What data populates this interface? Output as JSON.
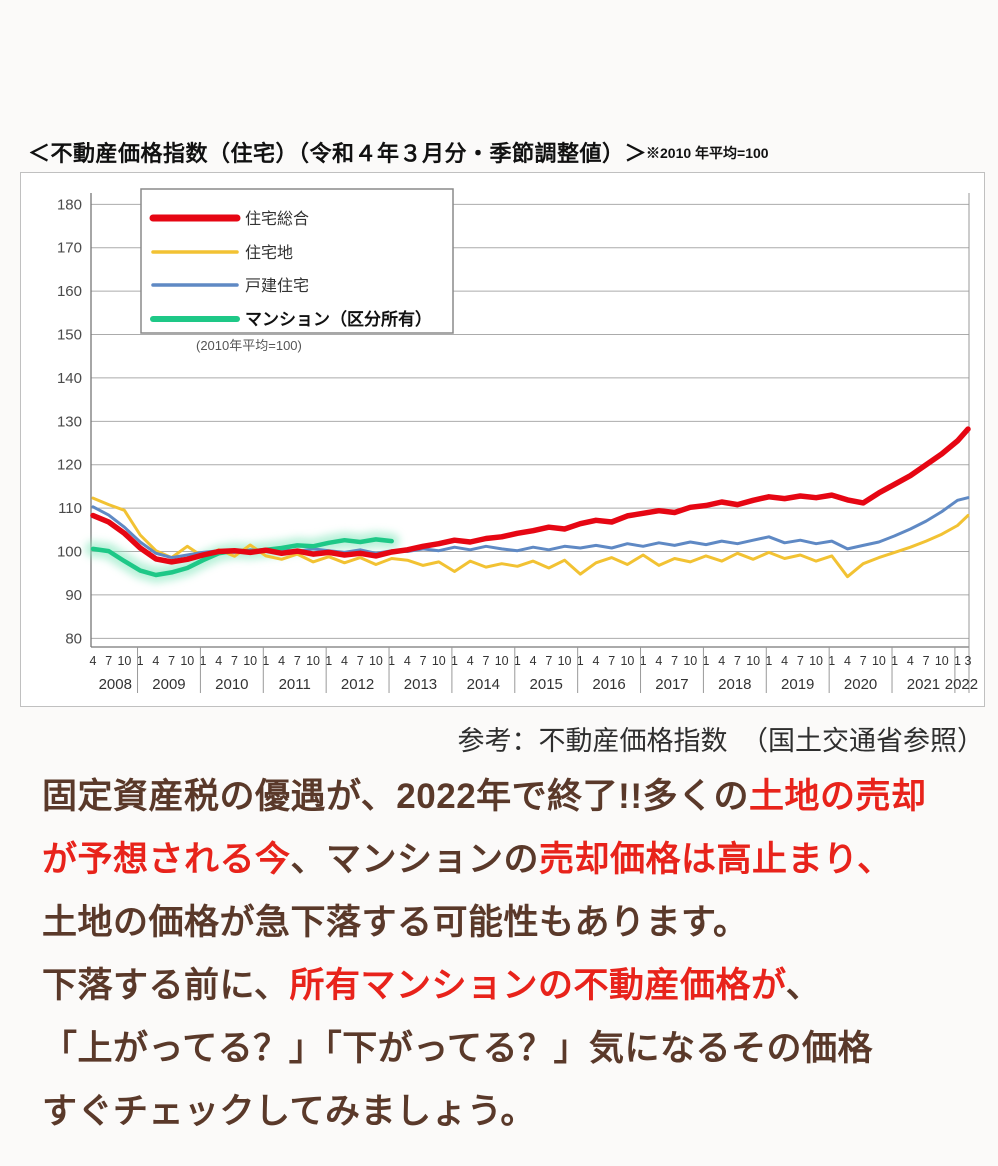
{
  "header": {
    "title": "＜不動産価格指数（住宅）（令和４年３月分・季節調整値）＞",
    "note": "※2010 年平均=100"
  },
  "chart_caption": "参考：不動産価格指数　（国土交通省参照）",
  "colors": {
    "body_brown": "#5a392a",
    "body_red": "#e8231b",
    "chart_red": "#e60613",
    "chart_yellow": "#f2c233",
    "chart_blue": "#5f89c4",
    "chart_green": "#1ec887",
    "gridline": "#ababab",
    "axis": "#777777"
  },
  "body_lines": [
    [
      {
        "text": "固定資産税の優遇が、2022年で終了!!多くの",
        "color": "brown"
      },
      {
        "text": "土地の売却",
        "color": "red"
      }
    ],
    [
      {
        "text": "が予想される今",
        "color": "red"
      },
      {
        "text": "、マンションの",
        "color": "brown"
      },
      {
        "text": "売却価格は高止まり、",
        "color": "red"
      }
    ],
    [
      {
        "text": "土地の価格が急下落する可能性もあります。",
        "color": "brown"
      }
    ],
    [
      {
        "text": "下落する前に、",
        "color": "brown"
      },
      {
        "text": "所有マンションの不動産価格が",
        "color": "red"
      },
      {
        "text": "、",
        "color": "brown"
      }
    ],
    [
      {
        "text": "「上がってる？」「下がってる？」気になるその価格",
        "color": "brown"
      }
    ],
    [
      {
        "text": "すぐチェックしてみましょう。",
        "color": "brown"
      }
    ]
  ],
  "chart_data": {
    "type": "line",
    "title": "不動産価格指数（住宅）（令和４年３月分・季節調整値）",
    "unit_note": "2010年平均=100",
    "legend_note": "(2010年平均=100)",
    "legend_position": "top-left",
    "grid": true,
    "ylim": [
      80,
      180
    ],
    "yticks": [
      80,
      90,
      100,
      110,
      120,
      130,
      140,
      150,
      160,
      170,
      180
    ],
    "x_axis": {
      "start": "2008-04",
      "end": "2022-03",
      "years": [
        2008,
        2009,
        2010,
        2011,
        2012,
        2013,
        2014,
        2015,
        2016,
        2017,
        2018,
        2019,
        2020,
        2021,
        2022
      ],
      "tick_pattern": [
        "4",
        "7",
        "10",
        "1"
      ],
      "last_year_ticks": [
        "3"
      ]
    },
    "series": [
      {
        "name": "住宅総合",
        "color": "#e60613",
        "width": 5.5,
        "z": 4,
        "t": [
          0,
          3,
          6,
          9,
          12,
          15,
          18,
          21,
          24,
          27,
          30,
          33,
          36,
          39,
          42,
          45,
          48,
          51,
          54,
          57,
          60,
          63,
          66,
          69,
          72,
          75,
          78,
          81,
          84,
          87,
          90,
          93,
          96,
          99,
          102,
          105,
          108,
          111,
          114,
          117,
          120,
          123,
          126,
          129,
          132,
          135,
          138,
          141,
          144,
          147,
          150,
          153,
          156,
          159,
          162,
          165,
          167
        ],
        "values": [
          108.3,
          106.8,
          104.2,
          100.8,
          98.3,
          97.6,
          98.2,
          99.2,
          100.0,
          100.2,
          99.8,
          100.3,
          99.6,
          100.1,
          99.4,
          99.8,
          99.2,
          99.6,
          99.0,
          99.9,
          100.4,
          101.2,
          101.8,
          102.6,
          102.2,
          103.0,
          103.4,
          104.2,
          104.8,
          105.6,
          105.2,
          106.4,
          107.2,
          106.8,
          108.2,
          108.8,
          109.4,
          109.0,
          110.2,
          110.6,
          111.4,
          110.8,
          111.8,
          112.6,
          112.2,
          112.8,
          112.4,
          113.0,
          111.9,
          111.2,
          113.5,
          115.5,
          117.5,
          120.0,
          122.5,
          125.5,
          128.2
        ]
      },
      {
        "name": "住宅地",
        "color": "#f2c233",
        "width": 3,
        "z": 1,
        "t": [
          0,
          3,
          6,
          9,
          12,
          15,
          18,
          21,
          24,
          27,
          30,
          33,
          36,
          39,
          42,
          45,
          48,
          51,
          54,
          57,
          60,
          63,
          66,
          69,
          72,
          75,
          78,
          81,
          84,
          87,
          90,
          93,
          96,
          99,
          102,
          105,
          108,
          111,
          114,
          117,
          120,
          123,
          126,
          129,
          132,
          135,
          138,
          141,
          144,
          147,
          150,
          153,
          156,
          159,
          162,
          165,
          167
        ],
        "values": [
          112.3,
          110.8,
          109.5,
          103.8,
          100.2,
          98.6,
          101.2,
          98.8,
          100.4,
          98.9,
          101.5,
          99.0,
          98.2,
          99.4,
          97.6,
          98.8,
          97.4,
          98.6,
          97.0,
          98.4,
          98.0,
          96.8,
          97.6,
          95.4,
          97.8,
          96.4,
          97.2,
          96.6,
          97.8,
          96.2,
          98.0,
          94.8,
          97.4,
          98.6,
          97.0,
          99.2,
          96.8,
          98.4,
          97.6,
          99.0,
          97.8,
          99.6,
          98.2,
          99.8,
          98.4,
          99.2,
          97.8,
          99.0,
          94.2,
          97.2,
          98.6,
          99.8,
          101.0,
          102.4,
          104.0,
          106.0,
          108.3
        ]
      },
      {
        "name": "戸建住宅",
        "color": "#5f89c4",
        "width": 3,
        "z": 2,
        "t": [
          0,
          3,
          6,
          9,
          12,
          15,
          18,
          21,
          24,
          27,
          30,
          33,
          36,
          39,
          42,
          45,
          48,
          51,
          54,
          57,
          60,
          63,
          66,
          69,
          72,
          75,
          78,
          81,
          84,
          87,
          90,
          93,
          96,
          99,
          102,
          105,
          108,
          111,
          114,
          117,
          120,
          123,
          126,
          129,
          132,
          135,
          138,
          141,
          144,
          147,
          150,
          153,
          156,
          159,
          162,
          165,
          167
        ],
        "values": [
          110.3,
          108.4,
          105.6,
          102.2,
          99.6,
          98.6,
          99.2,
          99.8,
          100.2,
          99.8,
          100.4,
          100.0,
          100.4,
          100.0,
          100.6,
          100.2,
          99.8,
          100.4,
          99.6,
          100.2,
          100.0,
          100.6,
          100.2,
          101.0,
          100.4,
          101.2,
          100.6,
          100.2,
          101.0,
          100.4,
          101.2,
          100.8,
          101.4,
          100.8,
          101.8,
          101.2,
          102.0,
          101.4,
          102.2,
          101.6,
          102.4,
          101.8,
          102.6,
          103.4,
          102.0,
          102.6,
          101.8,
          102.4,
          100.6,
          101.4,
          102.2,
          103.6,
          105.2,
          107.0,
          109.2,
          111.8,
          112.4
        ]
      },
      {
        "name": "マンション（区分所有）",
        "color": "#1ec887",
        "width": 4.5,
        "z": 3,
        "glow": "#8ae8c0",
        "bold": true,
        "t": [
          0,
          3,
          6,
          9,
          12,
          15,
          18,
          21,
          24,
          27,
          30,
          33,
          36,
          39,
          42,
          45,
          48,
          51,
          54,
          57
        ],
        "values": [
          100.6,
          100.1,
          97.8,
          95.6,
          94.6,
          95.2,
          96.2,
          98.0,
          99.6,
          100.2,
          100.0,
          100.4,
          100.8,
          101.4,
          101.2,
          102.0,
          102.6,
          102.2,
          102.8,
          102.4
        ]
      }
    ]
  }
}
